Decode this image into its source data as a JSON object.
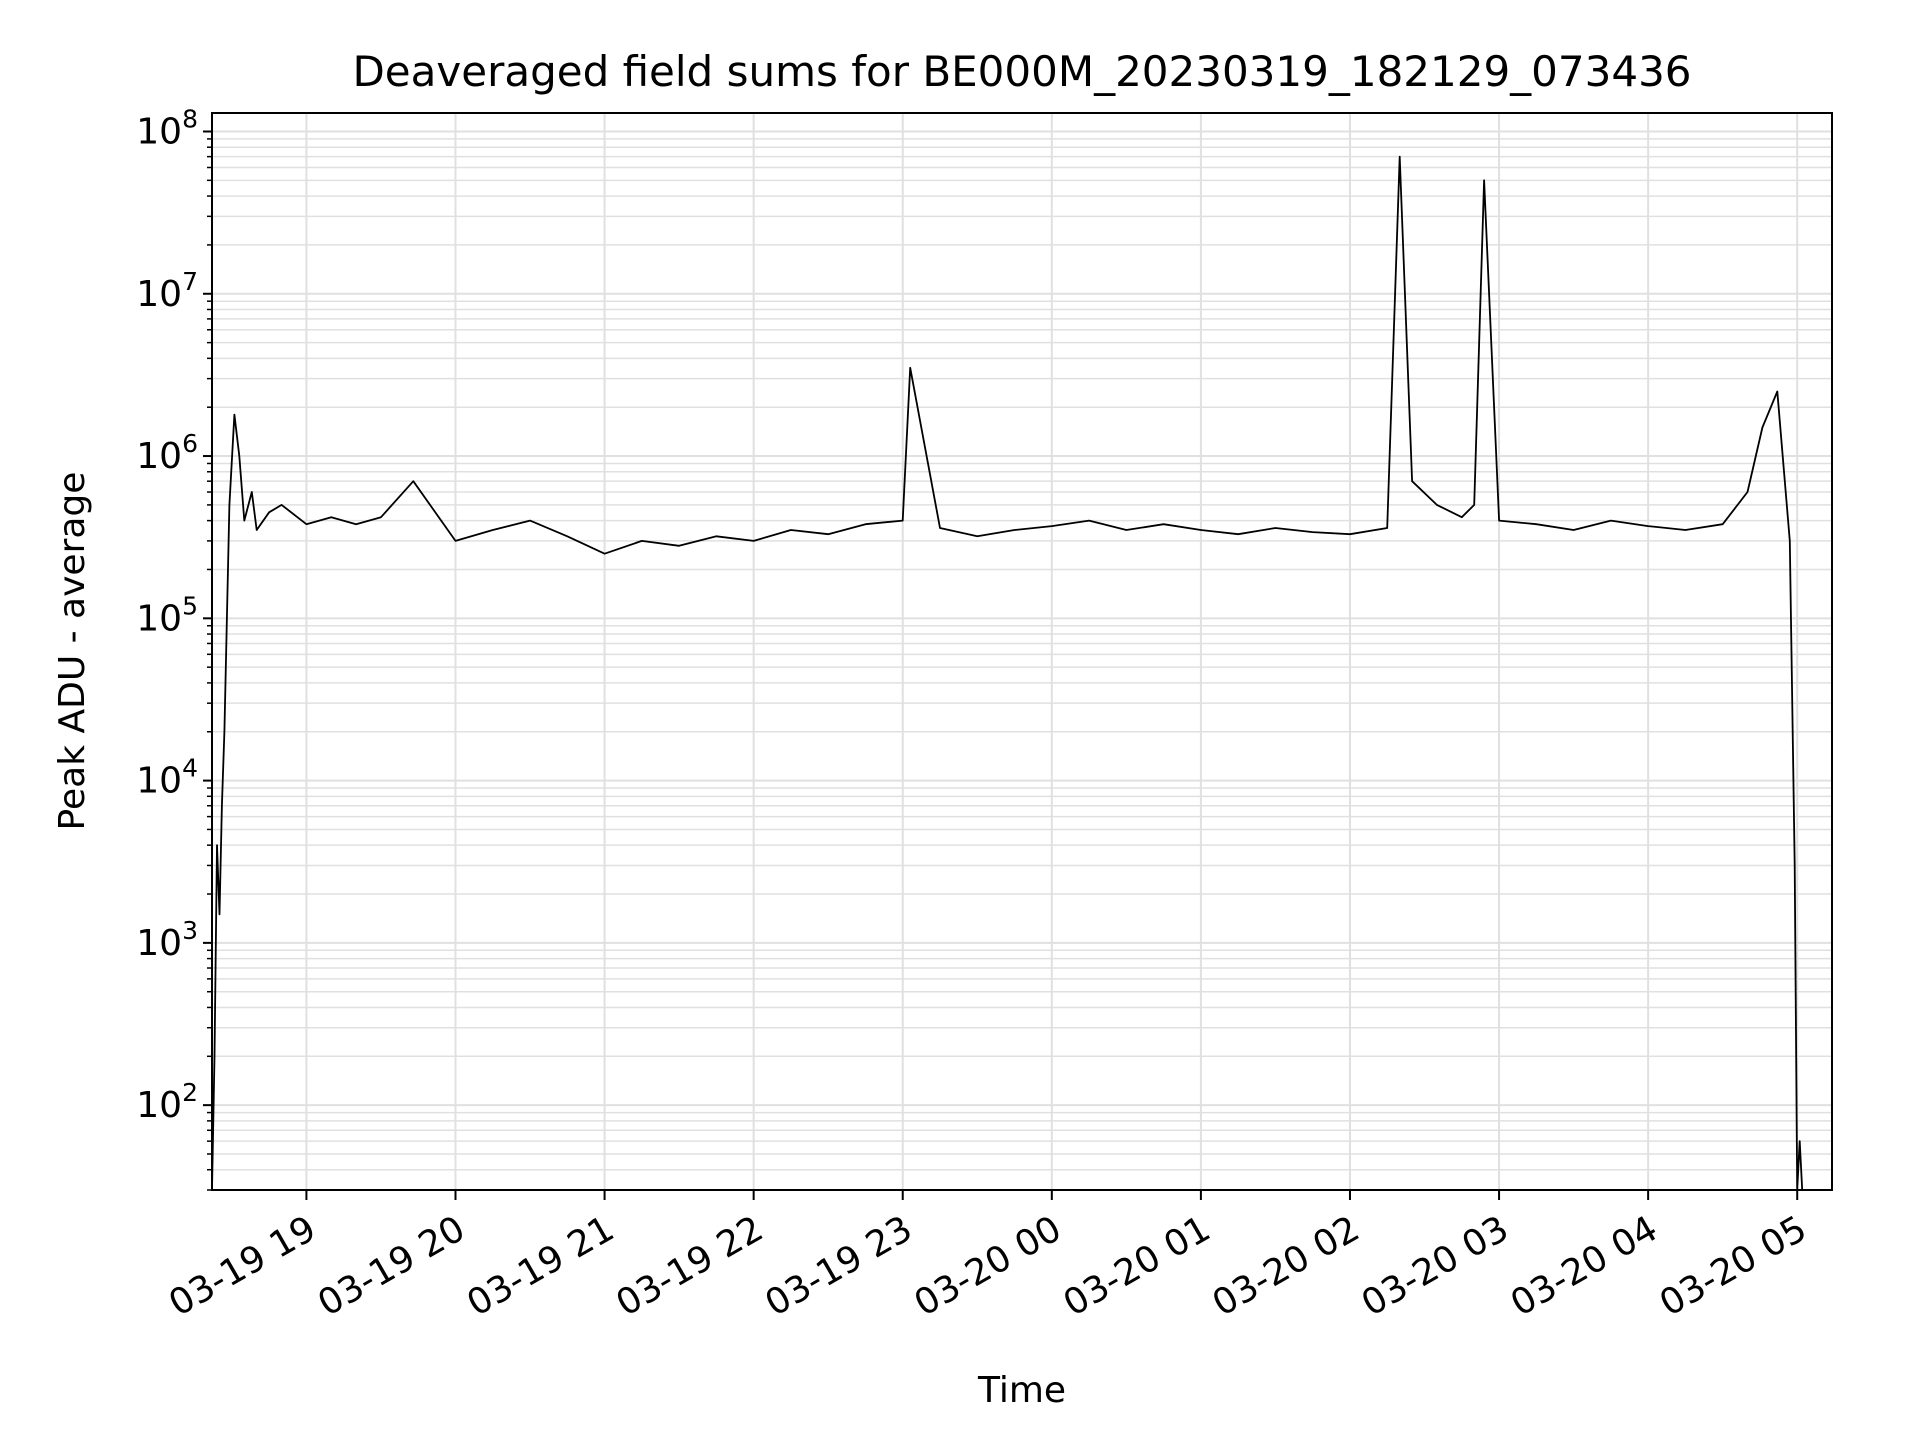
{
  "chart_data": {
    "type": "line",
    "title": "Deaveraged field sums for BE000M_20230319_182129_073436",
    "xlabel": "Time",
    "ylabel": "Peak ADU - average",
    "yscale": "log",
    "ylim": [
      30,
      130000000
    ],
    "xlim": [
      "2023-03-19 18:22",
      "2023-03-20 05:14"
    ],
    "grid": true,
    "line_color": "#000000",
    "grid_color": "#e0e0e0",
    "x_ticks": [
      {
        "value": "2023-03-19 19:00",
        "label": "03-19 19"
      },
      {
        "value": "2023-03-19 20:00",
        "label": "03-19 20"
      },
      {
        "value": "2023-03-19 21:00",
        "label": "03-19 21"
      },
      {
        "value": "2023-03-19 22:00",
        "label": "03-19 22"
      },
      {
        "value": "2023-03-19 23:00",
        "label": "03-19 23"
      },
      {
        "value": "2023-03-20 00:00",
        "label": "03-20 00"
      },
      {
        "value": "2023-03-20 01:00",
        "label": "03-20 01"
      },
      {
        "value": "2023-03-20 02:00",
        "label": "03-20 02"
      },
      {
        "value": "2023-03-20 03:00",
        "label": "03-20 03"
      },
      {
        "value": "2023-03-20 04:00",
        "label": "03-20 04"
      },
      {
        "value": "2023-03-20 05:00",
        "label": "03-20 05"
      }
    ],
    "y_ticks": [
      {
        "value": 100,
        "base": "10",
        "exp": "2"
      },
      {
        "value": 1000,
        "base": "10",
        "exp": "3"
      },
      {
        "value": 10000,
        "base": "10",
        "exp": "4"
      },
      {
        "value": 100000,
        "base": "10",
        "exp": "5"
      },
      {
        "value": 1000000,
        "base": "10",
        "exp": "6"
      },
      {
        "value": 10000000,
        "base": "10",
        "exp": "7"
      },
      {
        "value": 100000000,
        "base": "10",
        "exp": "8"
      }
    ],
    "series": [
      {
        "x": [
          "2023-03-19 18:22",
          "2023-03-19 18:23",
          "2023-03-19 18:24",
          "2023-03-19 18:25",
          "2023-03-19 18:26",
          "2023-03-19 18:27",
          "2023-03-19 18:29",
          "2023-03-19 18:31",
          "2023-03-19 18:33",
          "2023-03-19 18:35",
          "2023-03-19 18:38",
          "2023-03-19 18:40",
          "2023-03-19 18:45",
          "2023-03-19 18:50",
          "2023-03-19 19:00",
          "2023-03-19 19:10",
          "2023-03-19 19:20",
          "2023-03-19 19:30",
          "2023-03-19 19:43",
          "2023-03-19 20:00",
          "2023-03-19 20:15",
          "2023-03-19 20:30",
          "2023-03-19 20:45",
          "2023-03-19 21:00",
          "2023-03-19 21:15",
          "2023-03-19 21:30",
          "2023-03-19 21:45",
          "2023-03-19 22:00",
          "2023-03-19 22:15",
          "2023-03-19 22:30",
          "2023-03-19 22:45",
          "2023-03-19 23:00",
          "2023-03-19 23:03",
          "2023-03-19 23:15",
          "2023-03-19 23:30",
          "2023-03-19 23:45",
          "2023-03-20 00:00",
          "2023-03-20 00:15",
          "2023-03-20 00:30",
          "2023-03-20 00:45",
          "2023-03-20 01:00",
          "2023-03-20 01:15",
          "2023-03-20 01:30",
          "2023-03-20 01:45",
          "2023-03-20 02:00",
          "2023-03-20 02:15",
          "2023-03-20 02:20",
          "2023-03-20 02:25",
          "2023-03-20 02:35",
          "2023-03-20 02:45",
          "2023-03-20 02:50",
          "2023-03-20 02:54",
          "2023-03-20 03:00",
          "2023-03-20 03:15",
          "2023-03-20 03:30",
          "2023-03-20 03:45",
          "2023-03-20 04:00",
          "2023-03-20 04:15",
          "2023-03-20 04:30",
          "2023-03-20 04:40",
          "2023-03-20 04:46",
          "2023-03-20 04:52",
          "2023-03-20 04:55",
          "2023-03-20 04:57",
          "2023-03-20 04:59",
          "2023-03-20 05:00",
          "2023-03-20 05:01",
          "2023-03-20 05:02"
        ],
        "y": [
          30,
          200,
          4000,
          1500,
          7000,
          20000,
          500000,
          1800000,
          1000000,
          400000,
          600000,
          350000,
          450000,
          500000,
          380000,
          420000,
          380000,
          420000,
          700000,
          300000,
          350000,
          400000,
          320000,
          250000,
          300000,
          280000,
          320000,
          300000,
          350000,
          330000,
          380000,
          400000,
          3500000,
          360000,
          320000,
          350000,
          370000,
          400000,
          350000,
          380000,
          350000,
          330000,
          360000,
          340000,
          330000,
          360000,
          70000000,
          700000,
          500000,
          420000,
          500000,
          50000000,
          400000,
          380000,
          350000,
          400000,
          370000,
          350000,
          380000,
          600000,
          1500000,
          2500000,
          700000,
          300000,
          3000,
          30,
          60,
          30
        ]
      }
    ]
  }
}
